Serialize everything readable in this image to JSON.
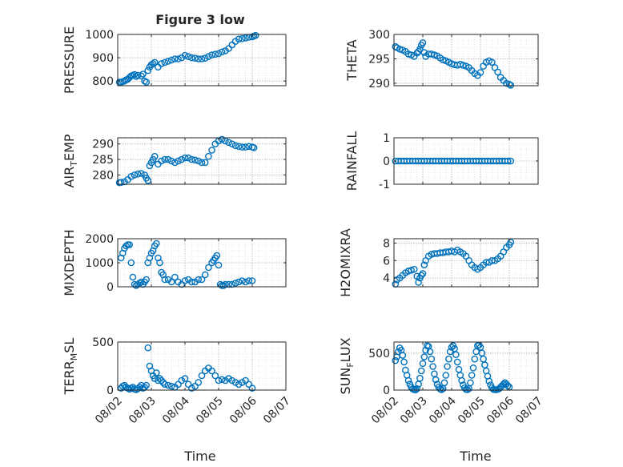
{
  "figure": {
    "background": "#ffffff",
    "marker_color": "#0072bd",
    "axis_color": "#262626",
    "grid_color": "#b0b0b0",
    "xlabel": "Time"
  },
  "chart_data": [
    {
      "id": "pressure",
      "type": "scatter",
      "title": "Figure 3 low",
      "ylabel": "PRESSURE",
      "xlim": [
        0,
        5
      ],
      "ylim": [
        780,
        1000
      ],
      "xticks": [
        "08/02",
        "08/03",
        "08/04",
        "08/05",
        "08/06",
        "08/07"
      ],
      "yticks": [
        800,
        900,
        1000
      ],
      "show_xticklabels": false,
      "x": [
        0.05,
        0.1,
        0.15,
        0.2,
        0.25,
        0.3,
        0.35,
        0.4,
        0.45,
        0.5,
        0.55,
        0.6,
        0.7,
        0.75,
        0.8,
        0.85,
        0.9,
        0.95,
        1.0,
        1.05,
        1.1,
        1.2,
        1.3,
        1.4,
        1.5,
        1.6,
        1.7,
        1.8,
        1.9,
        2.0,
        2.1,
        2.2,
        2.3,
        2.4,
        2.5,
        2.6,
        2.7,
        2.8,
        2.9,
        3.0,
        3.1,
        3.2,
        3.3,
        3.4,
        3.5,
        3.6,
        3.7,
        3.8,
        3.9,
        4.0,
        4.05,
        4.1
      ],
      "y": [
        795,
        795,
        798,
        800,
        805,
        808,
        815,
        822,
        825,
        828,
        820,
        825,
        822,
        830,
        800,
        795,
        845,
        860,
        870,
        875,
        880,
        860,
        875,
        880,
        885,
        890,
        895,
        895,
        900,
        910,
        905,
        900,
        898,
        895,
        895,
        898,
        905,
        912,
        915,
        918,
        925,
        930,
        940,
        955,
        970,
        980,
        982,
        985,
        988,
        990,
        993,
        996
      ]
    },
    {
      "id": "theta",
      "type": "scatter",
      "title": "",
      "ylabel": "THETA",
      "xlim": [
        0,
        5
      ],
      "ylim": [
        289.5,
        300
      ],
      "xticks": [
        "08/02",
        "08/03",
        "08/04",
        "08/05",
        "08/06",
        "08/07"
      ],
      "yticks": [
        290,
        295,
        300
      ],
      "show_xticklabels": false,
      "x": [
        0.05,
        0.1,
        0.2,
        0.3,
        0.4,
        0.5,
        0.6,
        0.7,
        0.8,
        0.85,
        0.9,
        0.95,
        1.0,
        1.05,
        1.1,
        1.2,
        1.3,
        1.4,
        1.5,
        1.6,
        1.7,
        1.8,
        1.9,
        2.0,
        2.1,
        2.2,
        2.3,
        2.4,
        2.5,
        2.6,
        2.7,
        2.8,
        2.9,
        3.0,
        3.1,
        3.2,
        3.3,
        3.4,
        3.5,
        3.6,
        3.7,
        3.8,
        3.9,
        4.0,
        4.05
      ],
      "y": [
        297.5,
        297.3,
        297.0,
        296.8,
        296.5,
        296.0,
        295.8,
        295.5,
        296.2,
        296.5,
        297.0,
        297.8,
        298.3,
        296.3,
        295.5,
        296.0,
        296.0,
        295.8,
        295.6,
        295.2,
        294.8,
        294.6,
        294.3,
        294.0,
        293.8,
        293.7,
        293.9,
        293.7,
        293.5,
        293.2,
        292.6,
        292.0,
        291.6,
        292.2,
        293.5,
        294.3,
        294.6,
        294.3,
        293.2,
        292.3,
        291.2,
        290.6,
        290.0,
        289.8,
        289.6
      ]
    },
    {
      "id": "air_temp",
      "type": "scatter",
      "title": "",
      "ylabel": "AIR_TEMP",
      "ylabel_main": "AIR",
      "ylabel_sub": "T",
      "ylabel_rest": "EMP",
      "xlim": [
        0,
        5
      ],
      "ylim": [
        277,
        292
      ],
      "xticks": [
        "08/02",
        "08/03",
        "08/04",
        "08/05",
        "08/06",
        "08/07"
      ],
      "yticks": [
        280,
        285,
        290
      ],
      "show_xticklabels": false,
      "x": [
        0.05,
        0.1,
        0.2,
        0.3,
        0.4,
        0.5,
        0.6,
        0.7,
        0.8,
        0.85,
        0.9,
        0.95,
        1.0,
        1.05,
        1.1,
        1.2,
        1.3,
        1.4,
        1.5,
        1.6,
        1.7,
        1.8,
        1.9,
        2.0,
        2.1,
        2.2,
        2.3,
        2.4,
        2.5,
        2.6,
        2.7,
        2.8,
        2.9,
        3.0,
        3.1,
        3.2,
        3.3,
        3.4,
        3.5,
        3.6,
        3.7,
        3.8,
        3.9,
        4.0,
        4.05
      ],
      "y": [
        277.5,
        277.6,
        277.8,
        278.5,
        279.5,
        280.0,
        280.3,
        280.5,
        280.0,
        279.0,
        278.2,
        283.0,
        284.0,
        285.0,
        286.0,
        283.5,
        284.5,
        285.0,
        285.0,
        284.5,
        284.0,
        284.5,
        285.0,
        285.5,
        285.5,
        285.0,
        284.8,
        284.5,
        284.0,
        284.0,
        286.0,
        288.0,
        290.0,
        291.0,
        291.5,
        291.0,
        290.5,
        290.0,
        289.5,
        289.2,
        289.0,
        289.0,
        289.2,
        289.0,
        288.8
      ]
    },
    {
      "id": "rainfall",
      "type": "scatter",
      "title": "",
      "ylabel": "RAINFALL",
      "xlim": [
        0,
        5
      ],
      "ylim": [
        -1,
        1
      ],
      "xticks": [
        "08/02",
        "08/03",
        "08/04",
        "08/05",
        "08/06",
        "08/07"
      ],
      "yticks": [
        -1,
        0,
        1
      ],
      "show_xticklabels": false,
      "x": [
        0.05,
        0.15,
        0.25,
        0.35,
        0.45,
        0.55,
        0.65,
        0.75,
        0.85,
        0.95,
        1.05,
        1.15,
        1.25,
        1.35,
        1.45,
        1.55,
        1.65,
        1.75,
        1.85,
        1.95,
        2.05,
        2.15,
        2.25,
        2.35,
        2.45,
        2.55,
        2.65,
        2.75,
        2.85,
        2.95,
        3.05,
        3.15,
        3.25,
        3.35,
        3.45,
        3.55,
        3.65,
        3.75,
        3.85,
        3.95,
        4.05
      ],
      "y": [
        0,
        0,
        0,
        0,
        0,
        0,
        0,
        0,
        0,
        0,
        0,
        0,
        0,
        0,
        0,
        0,
        0,
        0,
        0,
        0,
        0,
        0,
        0,
        0,
        0,
        0,
        0,
        0,
        0,
        0,
        0,
        0,
        0,
        0,
        0,
        0,
        0,
        0,
        0,
        0,
        0
      ]
    },
    {
      "id": "mixdepth",
      "type": "scatter",
      "title": "",
      "ylabel": "MIXDEPTH",
      "xlim": [
        0,
        5
      ],
      "ylim": [
        0,
        2000
      ],
      "xticks": [
        "08/02",
        "08/03",
        "08/04",
        "08/05",
        "08/06",
        "08/07"
      ],
      "yticks": [
        0,
        1000,
        2000
      ],
      "show_xticklabels": false,
      "x": [
        0.1,
        0.15,
        0.2,
        0.25,
        0.3,
        0.35,
        0.4,
        0.45,
        0.5,
        0.55,
        0.6,
        0.65,
        0.7,
        0.75,
        0.8,
        0.85,
        0.9,
        0.95,
        1.0,
        1.05,
        1.1,
        1.15,
        1.2,
        1.25,
        1.3,
        1.35,
        1.4,
        1.5,
        1.6,
        1.7,
        1.8,
        1.9,
        2.0,
        2.1,
        2.2,
        2.3,
        2.4,
        2.5,
        2.6,
        2.7,
        2.8,
        2.85,
        2.9,
        2.95,
        3.0,
        3.05,
        3.1,
        3.15,
        3.2,
        3.3,
        3.4,
        3.5,
        3.6,
        3.7,
        3.8,
        3.9,
        4.0
      ],
      "y": [
        1200,
        1400,
        1600,
        1700,
        1750,
        1750,
        1000,
        400,
        100,
        50,
        100,
        150,
        200,
        100,
        200,
        300,
        1000,
        1200,
        1400,
        1500,
        1700,
        1800,
        1200,
        1000,
        600,
        500,
        300,
        300,
        200,
        400,
        200,
        100,
        250,
        300,
        200,
        200,
        300,
        300,
        500,
        800,
        1000,
        1100,
        1200,
        1300,
        900,
        100,
        50,
        50,
        100,
        100,
        100,
        150,
        200,
        250,
        200,
        250,
        250
      ]
    },
    {
      "id": "h2omixra",
      "type": "scatter",
      "title": "",
      "ylabel": "H2OMIXRA",
      "xlim": [
        0,
        5
      ],
      "ylim": [
        3,
        8.5
      ],
      "xticks": [
        "08/02",
        "08/03",
        "08/04",
        "08/05",
        "08/06",
        "08/07"
      ],
      "yticks": [
        4,
        6,
        8
      ],
      "show_xticklabels": false,
      "x": [
        0.05,
        0.1,
        0.2,
        0.3,
        0.4,
        0.5,
        0.6,
        0.7,
        0.8,
        0.85,
        0.9,
        0.95,
        1.0,
        1.05,
        1.1,
        1.2,
        1.3,
        1.4,
        1.5,
        1.6,
        1.7,
        1.8,
        1.9,
        2.0,
        2.1,
        2.2,
        2.3,
        2.4,
        2.5,
        2.6,
        2.7,
        2.8,
        2.9,
        3.0,
        3.1,
        3.2,
        3.3,
        3.4,
        3.5,
        3.6,
        3.7,
        3.8,
        3.9,
        4.0,
        4.05
      ],
      "y": [
        3.3,
        3.8,
        4.0,
        4.3,
        4.6,
        4.8,
        4.9,
        5.0,
        4.2,
        3.5,
        4.0,
        4.3,
        4.5,
        5.5,
        6.0,
        6.5,
        6.7,
        6.8,
        6.8,
        6.9,
        6.9,
        7.0,
        7.0,
        7.1,
        7.0,
        7.2,
        7.0,
        6.8,
        6.5,
        6.0,
        5.5,
        5.2,
        5.0,
        5.2,
        5.5,
        5.8,
        5.8,
        6.0,
        6.0,
        6.2,
        6.5,
        7.0,
        7.5,
        7.8,
        8.1
      ]
    },
    {
      "id": "terr_msl",
      "type": "scatter",
      "title": "",
      "ylabel": "TERR_MSL",
      "ylabel_main": "TERR",
      "ylabel_sub": "M",
      "ylabel_rest": "SL",
      "xlim": [
        0,
        5
      ],
      "ylim": [
        0,
        500
      ],
      "xticks": [
        "08/02",
        "08/03",
        "08/04",
        "08/05",
        "08/06",
        "08/07"
      ],
      "yticks": [
        0,
        500
      ],
      "show_xticklabels": true,
      "x": [
        0.1,
        0.15,
        0.2,
        0.25,
        0.3,
        0.35,
        0.4,
        0.45,
        0.5,
        0.55,
        0.6,
        0.65,
        0.7,
        0.75,
        0.8,
        0.85,
        0.9,
        0.95,
        1.0,
        1.05,
        1.1,
        1.15,
        1.2,
        1.25,
        1.3,
        1.35,
        1.4,
        1.5,
        1.6,
        1.7,
        1.8,
        1.9,
        2.0,
        2.1,
        2.2,
        2.3,
        2.4,
        2.5,
        2.6,
        2.7,
        2.8,
        2.9,
        3.0,
        3.1,
        3.2,
        3.3,
        3.4,
        3.5,
        3.6,
        3.7,
        3.8,
        3.9,
        4.0
      ],
      "y": [
        20,
        40,
        50,
        30,
        20,
        10,
        20,
        30,
        10,
        5,
        15,
        30,
        50,
        20,
        30,
        50,
        440,
        250,
        200,
        150,
        120,
        180,
        100,
        120,
        100,
        80,
        60,
        50,
        40,
        30,
        60,
        100,
        120,
        60,
        20,
        40,
        80,
        150,
        200,
        230,
        200,
        150,
        100,
        110,
        100,
        120,
        100,
        80,
        60,
        80,
        100,
        60,
        20
      ]
    },
    {
      "id": "sun_flux",
      "type": "scatter",
      "title": "",
      "ylabel": "SUN_FLUX",
      "ylabel_main": "SUN",
      "ylabel_sub": "F",
      "ylabel_rest": "LUX",
      "xlim": [
        0,
        5
      ],
      "ylim": [
        0,
        650
      ],
      "xticks": [
        "08/02",
        "08/03",
        "08/04",
        "08/05",
        "08/06",
        "08/07"
      ],
      "yticks": [
        0,
        500
      ],
      "show_xticklabels": true,
      "x": [
        0.05,
        0.1,
        0.15,
        0.2,
        0.25,
        0.3,
        0.35,
        0.4,
        0.45,
        0.5,
        0.55,
        0.6,
        0.65,
        0.7,
        0.75,
        0.8,
        0.85,
        0.9,
        0.95,
        1.0,
        1.05,
        1.1,
        1.15,
        1.2,
        1.25,
        1.3,
        1.35,
        1.4,
        1.45,
        1.5,
        1.55,
        1.6,
        1.65,
        1.7,
        1.75,
        1.8,
        1.85,
        1.9,
        1.95,
        2.0,
        2.05,
        2.1,
        2.15,
        2.2,
        2.25,
        2.3,
        2.35,
        2.4,
        2.45,
        2.5,
        2.55,
        2.6,
        2.65,
        2.7,
        2.75,
        2.8,
        2.85,
        2.9,
        2.95,
        3.0,
        3.05,
        3.1,
        3.15,
        3.2,
        3.25,
        3.3,
        3.35,
        3.4,
        3.45,
        3.5,
        3.55,
        3.6,
        3.65,
        3.7,
        3.75,
        3.8,
        3.85,
        3.9,
        3.95,
        4.0
      ],
      "y": [
        400,
        450,
        520,
        570,
        540,
        470,
        380,
        270,
        200,
        130,
        80,
        40,
        15,
        5,
        3,
        20,
        80,
        160,
        260,
        360,
        450,
        540,
        600,
        590,
        520,
        420,
        320,
        220,
        140,
        80,
        40,
        15,
        5,
        20,
        100,
        200,
        320,
        420,
        520,
        580,
        600,
        560,
        480,
        380,
        280,
        200,
        130,
        70,
        30,
        10,
        5,
        20,
        100,
        200,
        300,
        420,
        520,
        600,
        610,
        580,
        500,
        420,
        340,
        260,
        190,
        120,
        70,
        30,
        10,
        5,
        5,
        10,
        20,
        40,
        60,
        80,
        100,
        80,
        60,
        40
      ]
    }
  ]
}
